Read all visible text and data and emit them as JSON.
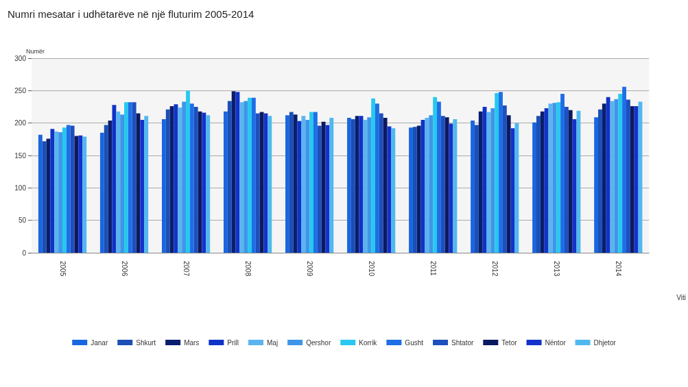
{
  "chart_data": {
    "type": "bar",
    "title": "Numri mesatar i udhëtarëve në një fluturim 2005-2014",
    "xlabel": "Viti",
    "ylabel": "Numër",
    "categories": [
      "2005",
      "2006",
      "2007",
      "2008",
      "2009",
      "2010",
      "2011",
      "2012",
      "2013",
      "2014"
    ],
    "series": [
      {
        "name": "Janar",
        "color": "#1a66e0",
        "values": [
          182,
          185,
          206,
          218,
          212,
          208,
          193,
          204,
          201,
          209
        ]
      },
      {
        "name": "Shkurt",
        "color": "#1a4fb5",
        "values": [
          172,
          197,
          221,
          234,
          217,
          206,
          194,
          197,
          211,
          221
        ]
      },
      {
        "name": "Mars",
        "color": "#0a1e6e",
        "values": [
          176,
          204,
          226,
          249,
          213,
          211,
          196,
          218,
          218,
          230
        ]
      },
      {
        "name": "Prill",
        "color": "#0f33c8",
        "values": [
          191,
          228,
          229,
          248,
          203,
          211,
          205,
          225,
          223,
          240
        ]
      },
      {
        "name": "Maj",
        "color": "#5ab4f0",
        "values": [
          187,
          218,
          224,
          232,
          211,
          205,
          208,
          217,
          230,
          234
        ]
      },
      {
        "name": "Qershor",
        "color": "#3f96e8",
        "values": [
          186,
          213,
          233,
          234,
          205,
          209,
          212,
          223,
          231,
          237
        ]
      },
      {
        "name": "Korrik",
        "color": "#28c8f0",
        "values": [
          193,
          232,
          250,
          239,
          217,
          238,
          240,
          246,
          232,
          245
        ]
      },
      {
        "name": "Gusht",
        "color": "#1e6ee6",
        "values": [
          197,
          232,
          230,
          239,
          217,
          230,
          233,
          248,
          245,
          256
        ]
      },
      {
        "name": "Shtator",
        "color": "#1d4fbd",
        "values": [
          196,
          232,
          225,
          215,
          196,
          215,
          211,
          227,
          225,
          236
        ]
      },
      {
        "name": "Tetor",
        "color": "#0b1a60",
        "values": [
          180,
          215,
          218,
          217,
          202,
          208,
          209,
          212,
          220,
          226
        ]
      },
      {
        "name": "Nëntor",
        "color": "#1332cc",
        "values": [
          181,
          205,
          216,
          215,
          197,
          195,
          199,
          192,
          206,
          226
        ]
      },
      {
        "name": "Dhjetor",
        "color": "#50b8f0",
        "values": [
          179,
          211,
          212,
          211,
          208,
          192,
          206,
          200,
          219,
          233
        ]
      }
    ],
    "ylim": [
      0,
      300
    ],
    "yticks": [
      0,
      50,
      100,
      150,
      200,
      250,
      300
    ],
    "grid": "y",
    "legend": "bottom"
  }
}
